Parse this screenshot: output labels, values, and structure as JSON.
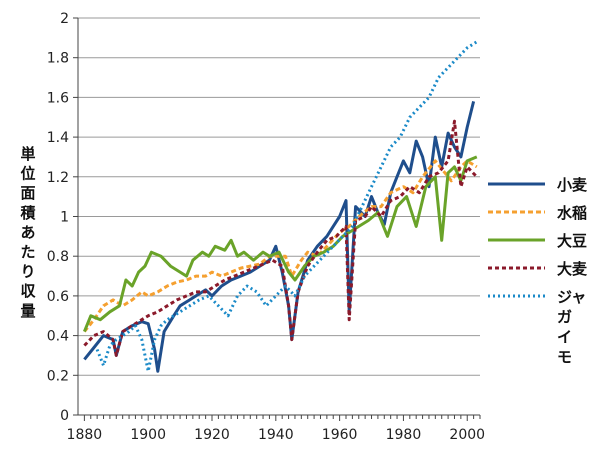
{
  "chart_data": {
    "type": "line",
    "title": "",
    "xlabel": "",
    "ylabel": "単位面積あたり収量",
    "xlim": [
      1878,
      2004
    ],
    "ylim": [
      0,
      2
    ],
    "x_ticks": [
      1880,
      1900,
      1920,
      1940,
      1960,
      1980,
      2000
    ],
    "x_tick_labels": [
      "1880",
      "1900",
      "1920",
      "1940",
      "1960",
      "1980",
      "2000"
    ],
    "y_ticks": [
      0,
      0.2,
      0.4,
      0.6,
      0.8,
      1,
      1.2,
      1.4,
      1.6,
      1.8,
      2
    ],
    "y_tick_labels": [
      "0",
      "0.2",
      "0.4",
      "0.6",
      "0.8",
      "1",
      "1.2",
      "1.4",
      "1.6",
      "1.8",
      "2"
    ],
    "grid": "horizontal",
    "legend_position": "right",
    "series": [
      {
        "name": "小麦",
        "color": "#1f4e8c",
        "dash": "solid",
        "x": [
          1880,
          1883,
          1886,
          1889,
          1890,
          1892,
          1895,
          1898,
          1900,
          1902,
          1903,
          1905,
          1908,
          1910,
          1913,
          1915,
          1918,
          1920,
          1923,
          1926,
          1929,
          1932,
          1935,
          1938,
          1940,
          1942,
          1944,
          1945,
          1947,
          1950,
          1953,
          1956,
          1958,
          1960,
          1962,
          1963,
          1965,
          1968,
          1970,
          1972,
          1974,
          1976,
          1978,
          1980,
          1982,
          1984,
          1986,
          1988,
          1990,
          1992,
          1994,
          1996,
          1998,
          2000,
          2002
        ],
        "y": [
          0.28,
          0.34,
          0.4,
          0.38,
          0.3,
          0.42,
          0.45,
          0.47,
          0.46,
          0.33,
          0.22,
          0.42,
          0.5,
          0.55,
          0.58,
          0.6,
          0.63,
          0.6,
          0.65,
          0.68,
          0.7,
          0.72,
          0.75,
          0.78,
          0.85,
          0.72,
          0.55,
          0.38,
          0.62,
          0.78,
          0.85,
          0.9,
          0.95,
          1.0,
          1.08,
          0.52,
          1.05,
          1.0,
          1.1,
          1.02,
          0.96,
          1.12,
          1.2,
          1.28,
          1.22,
          1.38,
          1.3,
          1.15,
          1.4,
          1.25,
          1.42,
          1.35,
          1.3,
          1.45,
          1.58
        ]
      },
      {
        "name": "水稲",
        "color": "#f5a030",
        "dash": "5,3",
        "x": [
          1880,
          1883,
          1886,
          1889,
          1892,
          1895,
          1898,
          1900,
          1903,
          1906,
          1909,
          1912,
          1915,
          1918,
          1920,
          1923,
          1926,
          1929,
          1932,
          1935,
          1938,
          1940,
          1943,
          1945,
          1948,
          1950,
          1953,
          1956,
          1960,
          1963,
          1966,
          1970,
          1973,
          1976,
          1980,
          1983,
          1986,
          1990,
          1993,
          1995,
          1998,
          2000,
          2003
        ],
        "y": [
          0.42,
          0.48,
          0.55,
          0.58,
          0.55,
          0.58,
          0.62,
          0.6,
          0.62,
          0.65,
          0.67,
          0.68,
          0.7,
          0.7,
          0.72,
          0.7,
          0.72,
          0.74,
          0.75,
          0.76,
          0.8,
          0.8,
          0.8,
          0.7,
          0.78,
          0.82,
          0.8,
          0.85,
          0.92,
          0.95,
          1.0,
          1.05,
          1.05,
          1.12,
          1.15,
          1.12,
          1.2,
          1.28,
          1.22,
          1.18,
          1.25,
          1.28,
          1.25
        ]
      },
      {
        "name": "大豆",
        "color": "#6aa329",
        "dash": "solid",
        "x": [
          1880,
          1882,
          1885,
          1888,
          1891,
          1893,
          1895,
          1897,
          1899,
          1901,
          1904,
          1907,
          1910,
          1912,
          1914,
          1917,
          1919,
          1921,
          1924,
          1926,
          1928,
          1930,
          1933,
          1936,
          1938,
          1941,
          1944,
          1946,
          1949,
          1952,
          1955,
          1958,
          1961,
          1963,
          1966,
          1969,
          1972,
          1975,
          1978,
          1981,
          1984,
          1987,
          1990,
          1992,
          1994,
          1996,
          1998,
          2000,
          2003
        ],
        "y": [
          0.42,
          0.5,
          0.48,
          0.52,
          0.55,
          0.68,
          0.65,
          0.72,
          0.75,
          0.82,
          0.8,
          0.75,
          0.72,
          0.7,
          0.78,
          0.82,
          0.8,
          0.85,
          0.83,
          0.88,
          0.8,
          0.82,
          0.78,
          0.82,
          0.8,
          0.82,
          0.72,
          0.68,
          0.75,
          0.8,
          0.82,
          0.85,
          0.9,
          0.92,
          0.95,
          0.98,
          1.02,
          0.9,
          1.05,
          1.1,
          0.95,
          1.15,
          1.2,
          0.88,
          1.22,
          1.25,
          1.18,
          1.28,
          1.3
        ]
      },
      {
        "name": "大麦",
        "color": "#8b1a2b",
        "dash": "4,3",
        "x": [
          1880,
          1883,
          1886,
          1889,
          1890,
          1892,
          1895,
          1898,
          1900,
          1903,
          1906,
          1909,
          1912,
          1915,
          1918,
          1921,
          1924,
          1927,
          1930,
          1933,
          1936,
          1939,
          1942,
          1944,
          1945,
          1947,
          1950,
          1953,
          1956,
          1959,
          1962,
          1963,
          1965,
          1968,
          1970,
          1973,
          1976,
          1979,
          1982,
          1985,
          1988,
          1991,
          1994,
          1996,
          1998,
          2000,
          2003
        ],
        "y": [
          0.35,
          0.4,
          0.42,
          0.38,
          0.3,
          0.42,
          0.45,
          0.48,
          0.5,
          0.52,
          0.55,
          0.58,
          0.6,
          0.62,
          0.62,
          0.65,
          0.68,
          0.7,
          0.72,
          0.74,
          0.76,
          0.78,
          0.75,
          0.55,
          0.38,
          0.62,
          0.75,
          0.82,
          0.88,
          0.9,
          0.95,
          0.48,
          0.98,
          1.0,
          1.05,
          1.0,
          1.08,
          1.1,
          1.15,
          1.12,
          1.2,
          1.22,
          1.28,
          1.48,
          1.15,
          1.25,
          1.2
        ]
      },
      {
        "name": "ジャガイモ",
        "color": "#1b8ac8",
        "dash": "2,3",
        "x": [
          1884,
          1886,
          1888,
          1890,
          1892,
          1894,
          1896,
          1898,
          1900,
          1902,
          1904,
          1906,
          1908,
          1910,
          1913,
          1916,
          1919,
          1922,
          1925,
          1928,
          1931,
          1934,
          1937,
          1940,
          1943,
          1946,
          1949,
          1952,
          1955,
          1958,
          1961,
          1964,
          1967,
          1970,
          1973,
          1976,
          1979,
          1982,
          1985,
          1988,
          1991,
          1994,
          1997,
          2000,
          2003
        ],
        "y": [
          0.33,
          0.25,
          0.35,
          0.38,
          0.4,
          0.42,
          0.45,
          0.38,
          0.22,
          0.38,
          0.45,
          0.48,
          0.5,
          0.52,
          0.55,
          0.58,
          0.6,
          0.55,
          0.5,
          0.6,
          0.65,
          0.62,
          0.55,
          0.6,
          0.65,
          0.6,
          0.7,
          0.75,
          0.8,
          0.85,
          0.9,
          0.95,
          1.05,
          1.15,
          1.25,
          1.35,
          1.4,
          1.5,
          1.55,
          1.6,
          1.7,
          1.75,
          1.8,
          1.85,
          1.88
        ]
      }
    ]
  }
}
